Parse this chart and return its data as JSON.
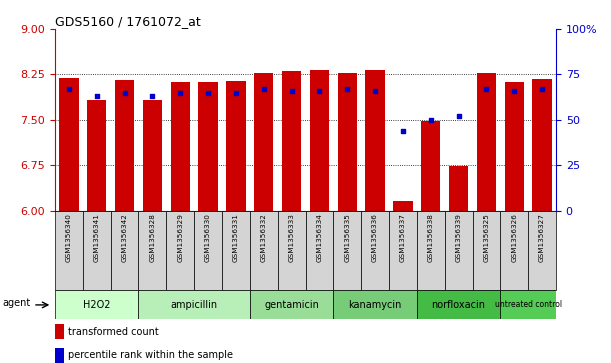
{
  "title": "GDS5160 / 1761072_at",
  "samples": [
    "GSM1356340",
    "GSM1356341",
    "GSM1356342",
    "GSM1356328",
    "GSM1356329",
    "GSM1356330",
    "GSM1356331",
    "GSM1356332",
    "GSM1356333",
    "GSM1356334",
    "GSM1356335",
    "GSM1356336",
    "GSM1356337",
    "GSM1356338",
    "GSM1356339",
    "GSM1356325",
    "GSM1356326",
    "GSM1356327"
  ],
  "bar_values": [
    8.19,
    7.82,
    8.15,
    7.82,
    8.13,
    8.12,
    8.14,
    8.28,
    8.3,
    8.32,
    8.27,
    8.33,
    6.15,
    7.48,
    6.73,
    8.27,
    8.13,
    8.18
  ],
  "percentile_values": [
    67,
    63,
    65,
    63,
    65,
    65,
    65,
    67,
    66,
    66,
    67,
    66,
    44,
    50,
    52,
    67,
    66,
    67
  ],
  "ylim_left": [
    6,
    9
  ],
  "ylim_right": [
    0,
    100
  ],
  "yticks_left": [
    6,
    6.75,
    7.5,
    8.25,
    9
  ],
  "yticks_right": [
    0,
    25,
    50,
    75,
    100
  ],
  "bar_color": "#cc0000",
  "dot_color": "#0000cc",
  "agents": [
    {
      "label": "H2O2",
      "start": 0,
      "end": 3,
      "color": "#ccffcc"
    },
    {
      "label": "ampicillin",
      "start": 3,
      "end": 7,
      "color": "#b8eeb8"
    },
    {
      "label": "gentamicin",
      "start": 7,
      "end": 10,
      "color": "#99dd99"
    },
    {
      "label": "kanamycin",
      "start": 10,
      "end": 13,
      "color": "#77cc77"
    },
    {
      "label": "norfloxacin",
      "start": 13,
      "end": 16,
      "color": "#44bb44"
    },
    {
      "label": "untreated control",
      "start": 16,
      "end": 18,
      "color": "#55cc55"
    }
  ],
  "legend_bar_label": "transformed count",
  "legend_dot_label": "percentile rank within the sample",
  "agent_label": "agent",
  "bar_color_hex": "#cc0000",
  "dot_color_hex": "#0000cc"
}
